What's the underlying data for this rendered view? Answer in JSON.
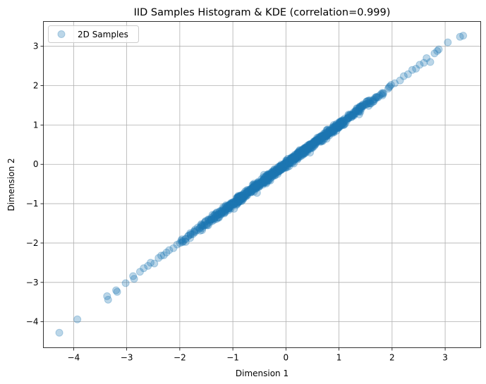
{
  "chart_data": {
    "type": "scatter",
    "title": "IID Samples Histogram & KDE (correlation=0.999)",
    "xlabel": "Dimension 1",
    "ylabel": "Dimension 2",
    "xlim": [
      -4.57,
      3.67
    ],
    "ylim": [
      -4.66,
      3.63
    ],
    "xticks": [
      -4,
      -3,
      -2,
      -1,
      0,
      1,
      2,
      3
    ],
    "yticks": [
      -4,
      -3,
      -2,
      -1,
      0,
      1,
      2,
      3
    ],
    "grid": true,
    "legend": {
      "position": "top-left",
      "entries": [
        "2D Samples"
      ]
    },
    "series": [
      {
        "name": "2D Samples",
        "color": "#1f77b4",
        "alpha": 0.3,
        "points": [
          [
            -4.27,
            -4.28
          ],
          [
            -3.93,
            -3.94
          ],
          [
            -3.37,
            -3.35
          ],
          [
            -3.35,
            -3.44
          ],
          [
            -3.2,
            -3.2
          ],
          [
            -3.18,
            -3.24
          ],
          [
            -3.02,
            -3.02
          ],
          [
            -2.88,
            -2.84
          ],
          [
            -2.86,
            -2.91
          ],
          [
            -2.75,
            -2.73
          ],
          [
            -2.68,
            -2.64
          ],
          [
            -2.6,
            -2.58
          ],
          [
            -2.55,
            -2.5
          ],
          [
            -2.48,
            -2.52
          ],
          [
            -2.4,
            -2.38
          ],
          [
            -2.35,
            -2.32
          ],
          [
            -2.3,
            -2.31
          ],
          [
            -2.25,
            -2.24
          ],
          [
            -2.2,
            -2.18
          ],
          [
            -2.12,
            -2.13
          ],
          [
            -2.05,
            -2.04
          ],
          [
            2.05,
            2.06
          ],
          [
            2.15,
            2.13
          ],
          [
            2.22,
            2.24
          ],
          [
            2.3,
            2.29
          ],
          [
            2.38,
            2.4
          ],
          [
            2.45,
            2.43
          ],
          [
            2.52,
            2.53
          ],
          [
            2.6,
            2.58
          ],
          [
            2.65,
            2.7
          ],
          [
            2.72,
            2.6
          ],
          [
            2.8,
            2.82
          ],
          [
            2.85,
            2.88
          ],
          [
            2.88,
            2.92
          ],
          [
            3.05,
            3.1
          ],
          [
            3.28,
            3.24
          ],
          [
            3.34,
            3.27
          ]
        ]
      }
    ]
  }
}
